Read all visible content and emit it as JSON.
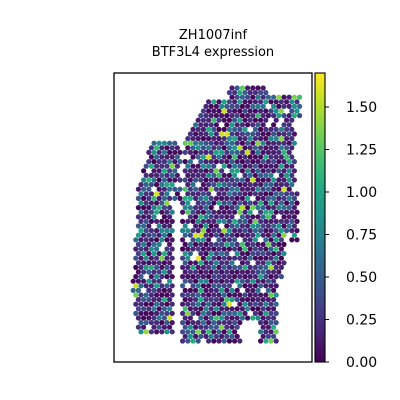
{
  "chart_data": {
    "type": "scatter",
    "title_line1": "ZH1007inf",
    "title_line2": "BTF3L4 expression",
    "xlabel": "",
    "ylabel": "",
    "grid": false,
    "colormap": "viridis",
    "colorbar": {
      "min": 0.0,
      "max": 1.7,
      "ticks": [
        0.0,
        0.25,
        0.5,
        0.75,
        1.0,
        1.25,
        1.5
      ],
      "tick_labels": [
        "0.00",
        "0.25",
        "0.50",
        "0.75",
        "1.00",
        "1.25",
        "1.50"
      ]
    },
    "series": [
      {
        "description_of_spots": "spatial transcriptomics spots; color = expression value",
        "summary": {
          "value_range": [
            0.0,
            1.7
          ],
          "typical_value": 0.3,
          "high_spots_note": "scattered yellow spots near 1.6"
        }
      }
    ]
  }
}
